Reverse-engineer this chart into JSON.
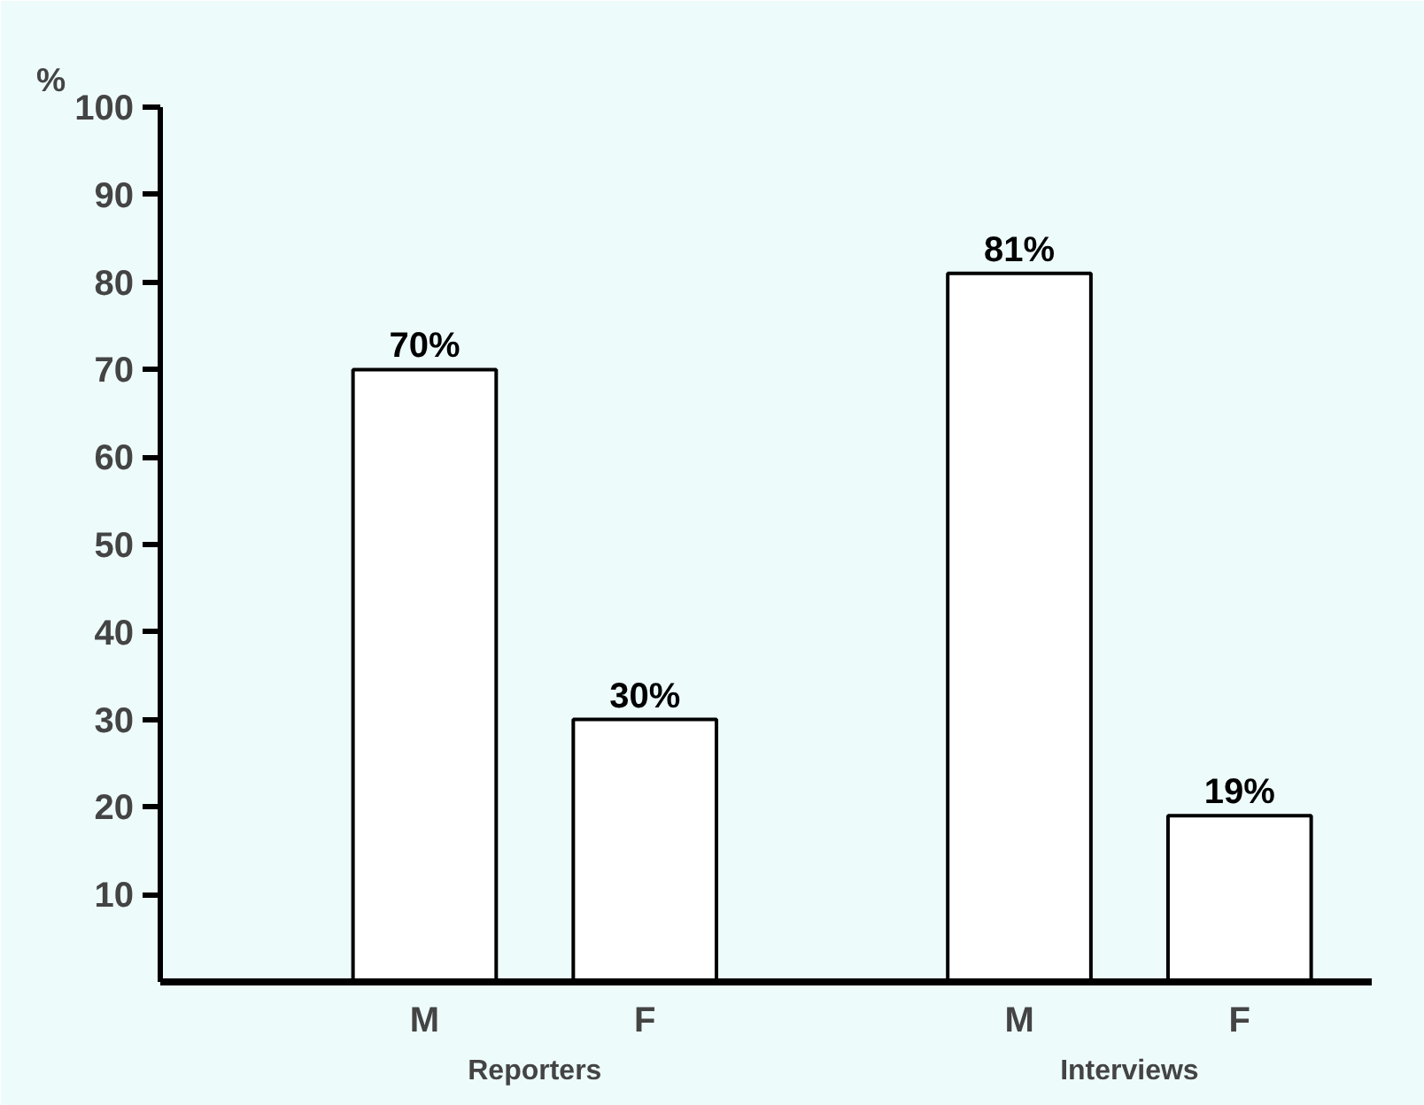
{
  "chart_data": {
    "type": "bar",
    "ylabel": "%",
    "categories": [
      "M",
      "F",
      "M",
      "F"
    ],
    "values": [
      70,
      30,
      81,
      19
    ],
    "colors": [
      "#ffffff",
      "#ffffff",
      "#ffffff",
      "#ffffff"
    ],
    "value_labels": [
      "70%",
      "30%",
      "81%",
      "19%"
    ],
    "annotations": [
      "Reporters",
      "Interviews"
    ],
    "ylim": [
      0,
      100
    ],
    "yticks": [
      10,
      20,
      30,
      40,
      50,
      60,
      70,
      80,
      90,
      100
    ],
    "grid": false
  }
}
